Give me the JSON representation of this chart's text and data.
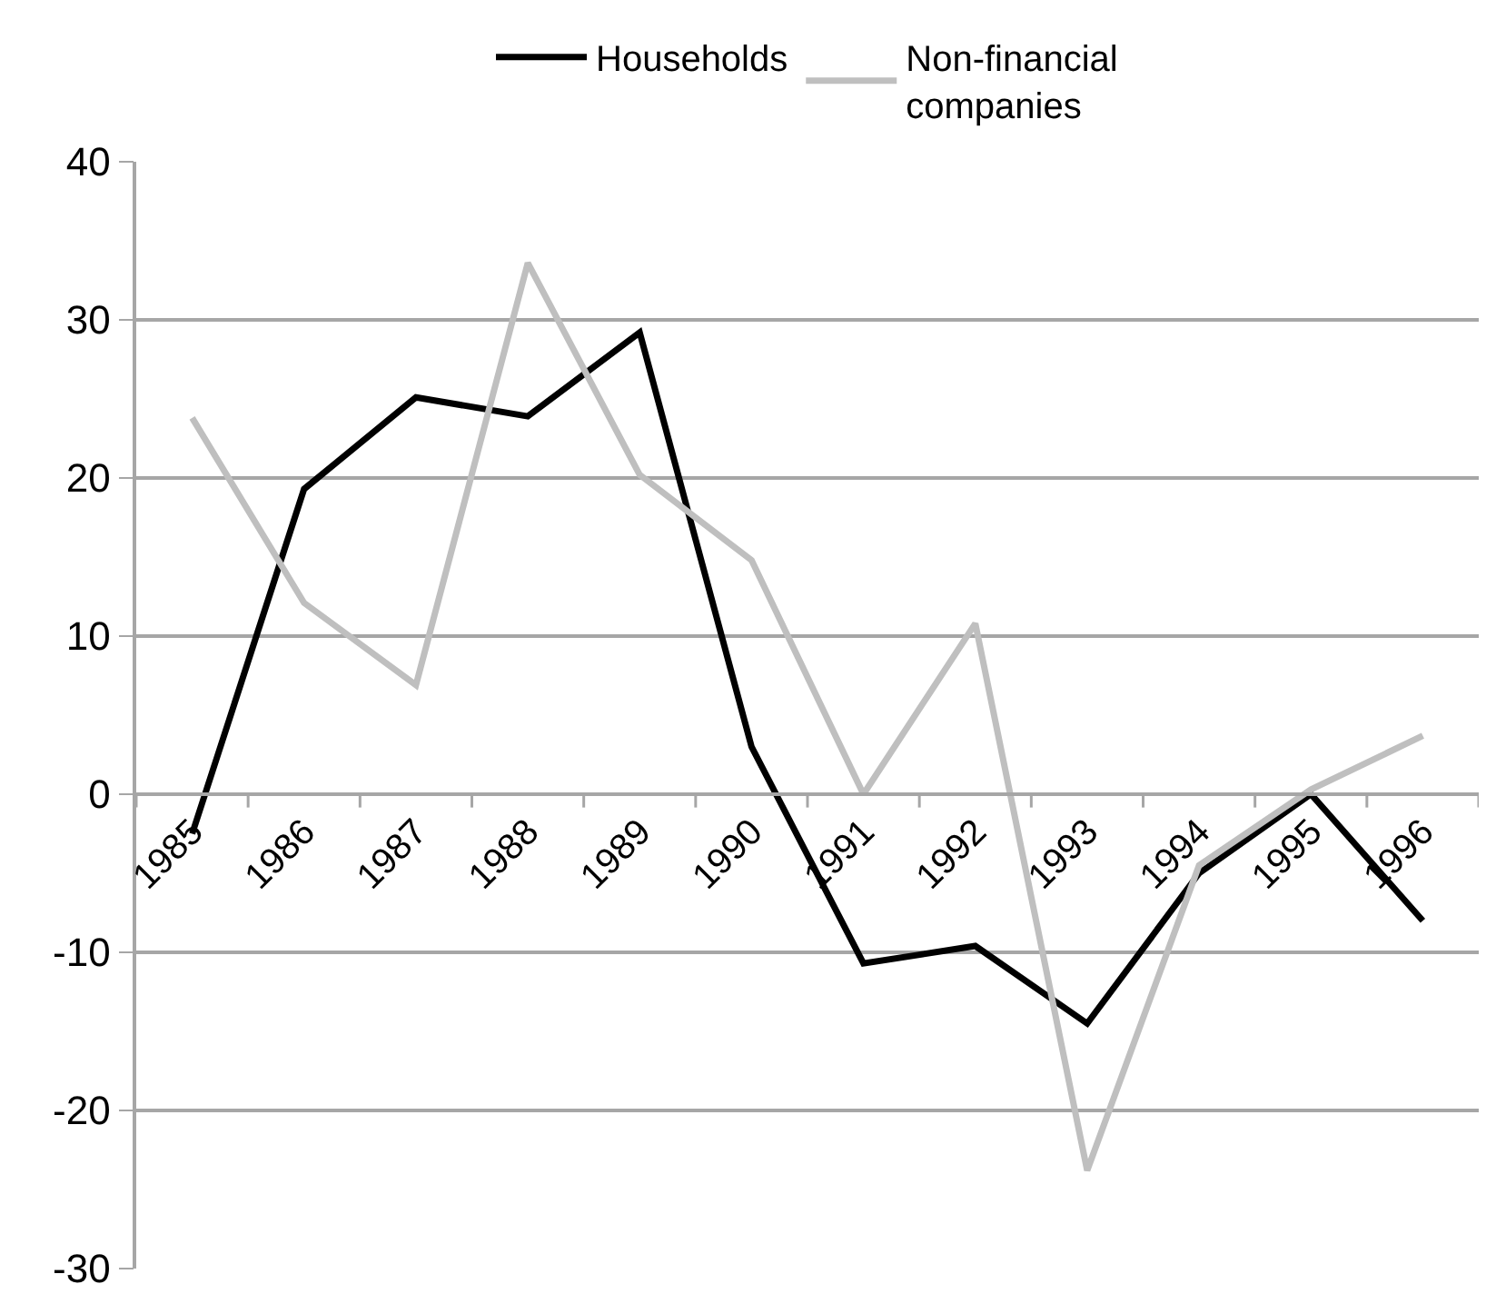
{
  "chart_data": {
    "type": "line",
    "categories": [
      "1985",
      "1986",
      "1987",
      "1988",
      "1989",
      "1990",
      "1991",
      "1992",
      "1993",
      "1994",
      "1995",
      "1996"
    ],
    "series": [
      {
        "name": "Households",
        "color": "#000000",
        "values": [
          -2.5,
          19.3,
          25.1,
          23.9,
          29.2,
          3,
          -10.7,
          -9.6,
          -14.5,
          -5,
          0,
          -8
        ]
      },
      {
        "name": "Non-financial\ncompanies",
        "color": "#bfbfbf",
        "values": [
          23.8,
          12.1,
          6.9,
          33.6,
          20.2,
          14.8,
          0,
          10.8,
          -23.8,
          -4.5,
          0.3,
          3.7
        ]
      }
    ],
    "ylim": [
      -30,
      40
    ],
    "yticks": [
      -30,
      -20,
      -10,
      0,
      10,
      20,
      30,
      40
    ],
    "grid": "y",
    "legend": "top",
    "marker": "none",
    "line_style": "solid"
  }
}
